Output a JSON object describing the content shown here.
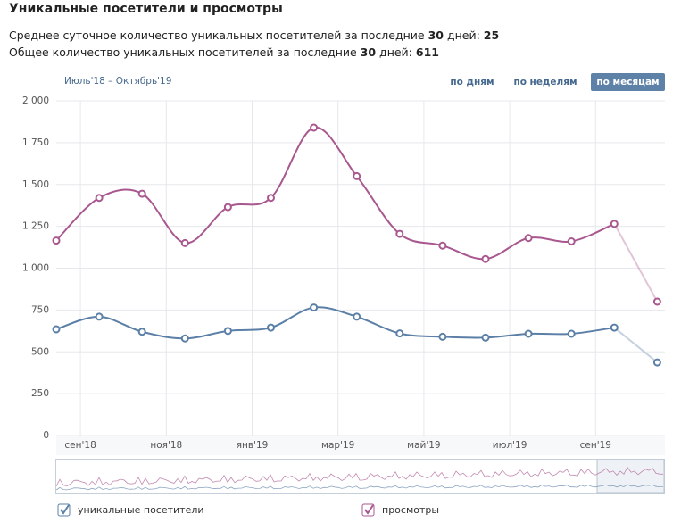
{
  "header": {
    "title": "Уникальные посетители и просмотры"
  },
  "stats": [
    {
      "text": "Среднее суточное количество уникальных посетителей за последние ",
      "days": 30,
      "mid": " дней: ",
      "value": 25
    },
    {
      "text": "Общее количество уникальных посетителей за последние ",
      "days": 30,
      "mid": " дней: ",
      "value": 611
    }
  ],
  "controls": {
    "range": "Июль'18 – Октябрь'19",
    "buttons": [
      "по дням",
      "по неделям",
      "по месяцам"
    ],
    "active": 2
  },
  "chart_data": {
    "type": "line",
    "x": [
      "2018-08",
      "2018-09",
      "2018-10",
      "2018-11",
      "2018-12",
      "2019-01",
      "2019-02",
      "2019-03",
      "2019-04",
      "2019-05",
      "2019-06",
      "2019-07",
      "2019-08",
      "2019-09",
      "2019-10"
    ],
    "series": [
      {
        "name": "уникальные посетители",
        "color": "#5b7fa6",
        "values": [
          635,
          710,
          620,
          580,
          625,
          645,
          765,
          710,
          610,
          590,
          585,
          608,
          608,
          645,
          437
        ]
      },
      {
        "name": "просмотры",
        "color": "#a9588f",
        "values": [
          1165,
          1420,
          1445,
          1150,
          1365,
          1420,
          1840,
          1550,
          1205,
          1135,
          1055,
          1180,
          1160,
          1265,
          800
        ]
      }
    ],
    "ylim": [
      0,
      2000
    ],
    "yticks": [
      0,
      250,
      500,
      750,
      {
        "value": 1000,
        "label": "1 000"
      },
      {
        "value": 1250,
        "label": "1 250"
      },
      {
        "value": 1500,
        "label": "1 500"
      },
      {
        "value": 1750,
        "label": "1 750"
      },
      {
        "value": 2000,
        "label": "2 000"
      }
    ],
    "xticks": [
      {
        "value": "2018-09",
        "label": "сен'18"
      },
      {
        "value": "2018-11",
        "label": "ноя'18"
      },
      {
        "value": "2019-01",
        "label": "янв'19"
      },
      {
        "value": "2019-03",
        "label": "мар'19"
      },
      {
        "value": "2019-05",
        "label": "май'19"
      },
      {
        "value": "2019-07",
        "label": "июл'19"
      },
      {
        "value": "2019-09",
        "label": "сен'19"
      }
    ],
    "grid": true
  }
}
